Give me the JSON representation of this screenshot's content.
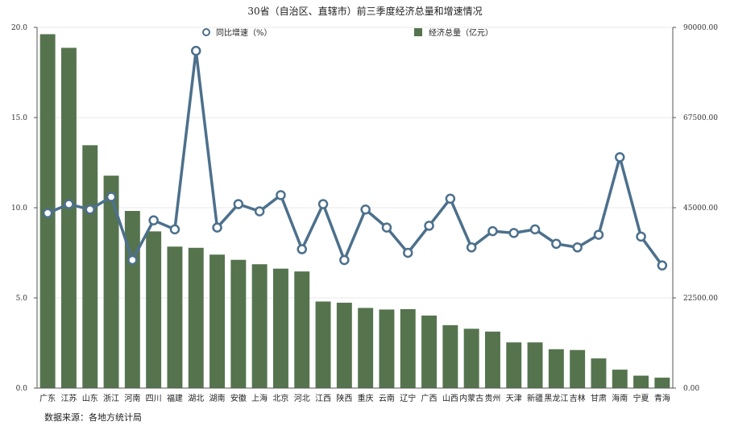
{
  "chart_data": {
    "type": "bar",
    "title": "30省（自治区、直辖市）前三季度经济总量和增速情况",
    "source": "数据来源：各地方统计局",
    "categories": [
      "广东",
      "江苏",
      "山东",
      "浙江",
      "河南",
      "四川",
      "福建",
      "湖北",
      "湖南",
      "安徽",
      "上海",
      "北京",
      "河北",
      "江西",
      "陕西",
      "重庆",
      "云南",
      "辽宁",
      "广西",
      "山西",
      "内蒙古",
      "贵州",
      "天津",
      "新疆",
      "黑龙江",
      "吉林",
      "甘肃",
      "海南",
      "宁夏",
      "青海"
    ],
    "series": [
      {
        "name": "经济总量（亿元）",
        "type": "bar",
        "axis": "right",
        "color": "#55744e",
        "values": [
          88300,
          84900,
          60600,
          53000,
          44200,
          39100,
          35300,
          35000,
          33300,
          32000,
          30900,
          29800,
          29100,
          21600,
          21300,
          20000,
          19600,
          19700,
          18100,
          15700,
          14800,
          14100,
          11400,
          11400,
          9700,
          9500,
          7400,
          4600,
          3100,
          2600
        ]
      },
      {
        "name": "同比增速（%）",
        "type": "line",
        "axis": "left",
        "color": "#4c708c",
        "values": [
          9.7,
          10.2,
          9.9,
          10.6,
          7.1,
          9.3,
          8.8,
          18.7,
          8.9,
          10.2,
          9.8,
          10.7,
          7.7,
          10.2,
          7.1,
          9.9,
          8.9,
          7.5,
          9.0,
          10.5,
          7.8,
          8.7,
          8.6,
          8.8,
          8.0,
          7.8,
          8.5,
          12.8,
          8.4,
          6.8
        ]
      }
    ],
    "y_left": {
      "min": 0,
      "max": 20,
      "ticks": [
        "0.0",
        "5.0",
        "10.0",
        "15.0",
        "20.0"
      ]
    },
    "y_right": {
      "min": 0,
      "max": 90000,
      "ticks": [
        "0.00",
        "22500.00",
        "45000.00",
        "67500.00",
        "90000.00"
      ]
    },
    "grid": true,
    "legend": "top"
  }
}
